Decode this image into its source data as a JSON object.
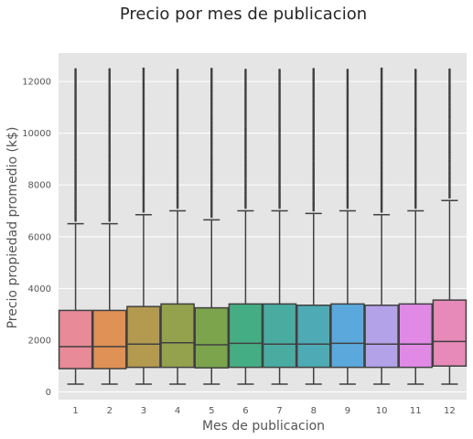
{
  "chart_data": {
    "type": "box",
    "title": "Precio por mes de publicacion",
    "xlabel": "Mes de publicacion",
    "ylabel": "Precio propiedad promedio (k$)",
    "ylim": [
      -300,
      13100
    ],
    "yticks": [
      0,
      2000,
      4000,
      6000,
      8000,
      10000,
      12000
    ],
    "grid": true,
    "categories": [
      "1",
      "2",
      "3",
      "4",
      "5",
      "6",
      "7",
      "8",
      "9",
      "10",
      "11",
      "12"
    ],
    "boxes": [
      {
        "category": "1",
        "min": 300,
        "q1": 900,
        "median": 1750,
        "q3": 3150,
        "whisker_high": 6500,
        "outlier_max": 12500,
        "color": "#e88a97"
      },
      {
        "category": "2",
        "min": 300,
        "q1": 900,
        "median": 1750,
        "q3": 3150,
        "whisker_high": 6500,
        "outlier_max": 12500,
        "color": "#e09155"
      },
      {
        "category": "3",
        "min": 300,
        "q1": 950,
        "median": 1850,
        "q3": 3300,
        "whisker_high": 6850,
        "outlier_max": 12500,
        "color": "#b39a4f"
      },
      {
        "category": "4",
        "min": 300,
        "q1": 950,
        "median": 1900,
        "q3": 3400,
        "whisker_high": 7000,
        "outlier_max": 12500,
        "color": "#94a14d"
      },
      {
        "category": "5",
        "min": 300,
        "q1": 930,
        "median": 1820,
        "q3": 3250,
        "whisker_high": 6650,
        "outlier_max": 12500,
        "color": "#7ba44d"
      },
      {
        "category": "6",
        "min": 300,
        "q1": 950,
        "median": 1880,
        "q3": 3400,
        "whisker_high": 7000,
        "outlier_max": 12500,
        "color": "#45ad83"
      },
      {
        "category": "7",
        "min": 300,
        "q1": 950,
        "median": 1850,
        "q3": 3400,
        "whisker_high": 7000,
        "outlier_max": 12500,
        "color": "#4aaba1"
      },
      {
        "category": "8",
        "min": 300,
        "q1": 950,
        "median": 1850,
        "q3": 3350,
        "whisker_high": 6900,
        "outlier_max": 12500,
        "color": "#4eaab4"
      },
      {
        "category": "9",
        "min": 300,
        "q1": 950,
        "median": 1880,
        "q3": 3400,
        "whisker_high": 7000,
        "outlier_max": 12500,
        "color": "#5ba9dc"
      },
      {
        "category": "10",
        "min": 300,
        "q1": 950,
        "median": 1850,
        "q3": 3350,
        "whisker_high": 6850,
        "outlier_max": 12500,
        "color": "#b3a2e8"
      },
      {
        "category": "11",
        "min": 300,
        "q1": 950,
        "median": 1850,
        "q3": 3400,
        "whisker_high": 7000,
        "outlier_max": 12500,
        "color": "#e08ae6"
      },
      {
        "category": "12",
        "min": 300,
        "q1": 1000,
        "median": 1950,
        "q3": 3550,
        "whisker_high": 7400,
        "outlier_max": 12500,
        "color": "#e88ab9"
      }
    ]
  },
  "style": {
    "plot_bg": "#e5e5e5",
    "grid_color": "#ffffff",
    "line_color": "#404040",
    "outlier_color": "#404040"
  }
}
